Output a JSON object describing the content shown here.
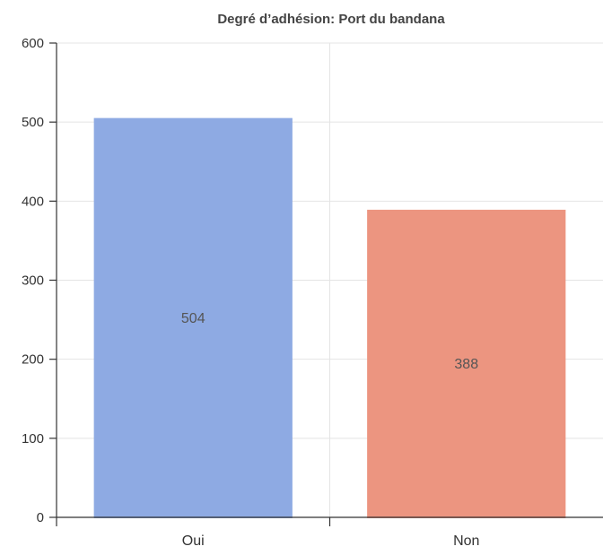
{
  "chart_data": {
    "type": "bar",
    "title": "Degré d’adhésion: Port du bandana",
    "xlabel": "",
    "ylabel": "",
    "categories": [
      "Oui",
      "Non"
    ],
    "values": [
      504,
      388
    ],
    "data_labels": [
      "504",
      "388"
    ],
    "colors": [
      "#8eaae3",
      "#ec9580"
    ],
    "ylim": [
      0,
      600
    ],
    "yticks": [
      0,
      100,
      200,
      300,
      400,
      500,
      600
    ],
    "grid": true,
    "legend": "none"
  }
}
